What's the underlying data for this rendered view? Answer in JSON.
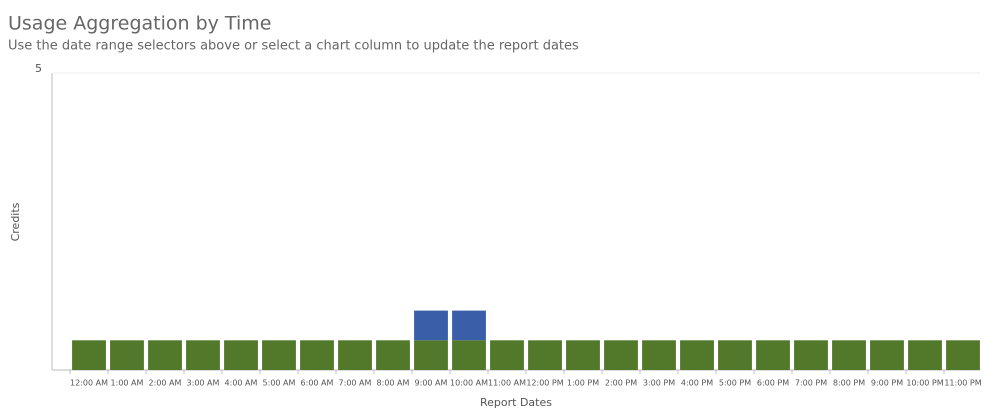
{
  "chart_data": {
    "type": "stacked-bar",
    "title": "Usage Aggregation by Time",
    "subtitle": "Use the date range selectors above or select a chart column to update the report dates",
    "x_label": "Report Dates",
    "y_label": "Credits",
    "categories": [
      "12:00 AM",
      "1:00 AM",
      "2:00 AM",
      "3:00 AM",
      "4:00 AM",
      "5:00 AM",
      "6:00 AM",
      "7:00 AM",
      "8:00 AM",
      "9:00 AM",
      "10:00 AM",
      "11:00 AM",
      "12:00 PM",
      "1:00 PM",
      "2:00 PM",
      "3:00 PM",
      "4:00 PM",
      "5:00 PM",
      "6:00 PM",
      "7:00 PM",
      "8:00 PM",
      "9:00 PM",
      "10:00 PM",
      "11:00 PM"
    ],
    "series": [
      {
        "color": "#52792a",
        "values": [
          0.5,
          0.5,
          0.5,
          0.5,
          0.5,
          0.5,
          0.5,
          0.5,
          0.5,
          0.5,
          0.5,
          0.5,
          0.5,
          0.5,
          0.5,
          0.5,
          0.5,
          0.5,
          0.5,
          0.5,
          0.5,
          0.5,
          0.5,
          0.5
        ]
      },
      {
        "color": "#3a5ea8",
        "values": [
          null,
          null,
          null,
          null,
          null,
          null,
          null,
          null,
          null,
          0.5,
          0.5,
          null,
          null,
          null,
          null,
          null,
          null,
          null,
          null,
          null,
          null,
          null,
          null,
          null
        ]
      }
    ],
    "ylim": [
      0,
      5
    ],
    "yticks": [
      5
    ],
    "grid": true
  }
}
